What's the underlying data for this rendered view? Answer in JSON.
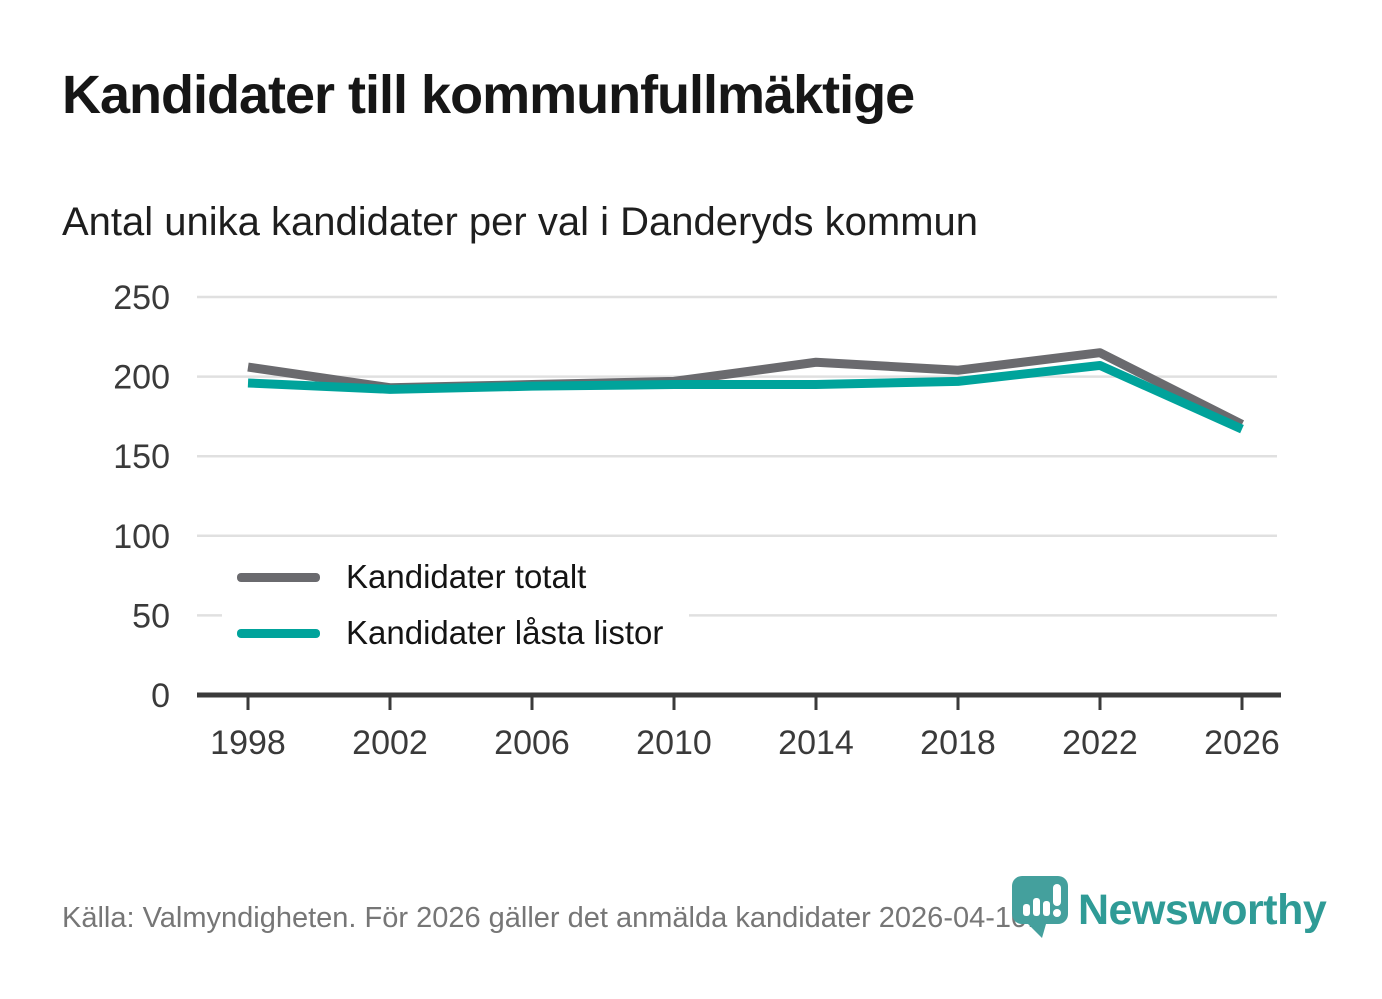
{
  "header": {
    "title": "Kandidater till kommunfullmäktige",
    "subtitle": "Antal unika kandidater per val i Danderyds kommun"
  },
  "chart_data": {
    "type": "line",
    "x": [
      1998,
      2002,
      2006,
      2010,
      2014,
      2018,
      2022,
      2026
    ],
    "series": [
      {
        "name": "Kandidater totalt",
        "color": "#6a6a6e",
        "values": [
          206,
          193,
          195,
          197,
          209,
          204,
          215,
          170
        ]
      },
      {
        "name": "Kandidater låsta listor",
        "color": "#00a39b",
        "values": [
          196,
          192,
          194,
          195,
          195,
          197,
          207,
          167
        ]
      }
    ],
    "title": "Kandidater till kommunfullmäktige",
    "subtitle": "Antal unika kandidater per val i Danderyds kommun",
    "xlabel": "",
    "ylabel": "",
    "ylim": [
      0,
      250
    ],
    "yticks": [
      0,
      50,
      100,
      150,
      200,
      250
    ],
    "grid": "horizontal",
    "legend_position": "inside-bottom-left"
  },
  "colors": {
    "grid": "#e0e0e0",
    "axis": "#3a3a3a",
    "tick_text": "#3a3a3a",
    "footer_text": "#767676",
    "brand_teal": "#2f9b96",
    "icon_teal": "#44a09d"
  },
  "footer": {
    "source": "Källa: Valmyndigheten. För 2026 gäller det anmälda kandidater 2026-04-10.",
    "brand": "Newsworthy"
  }
}
